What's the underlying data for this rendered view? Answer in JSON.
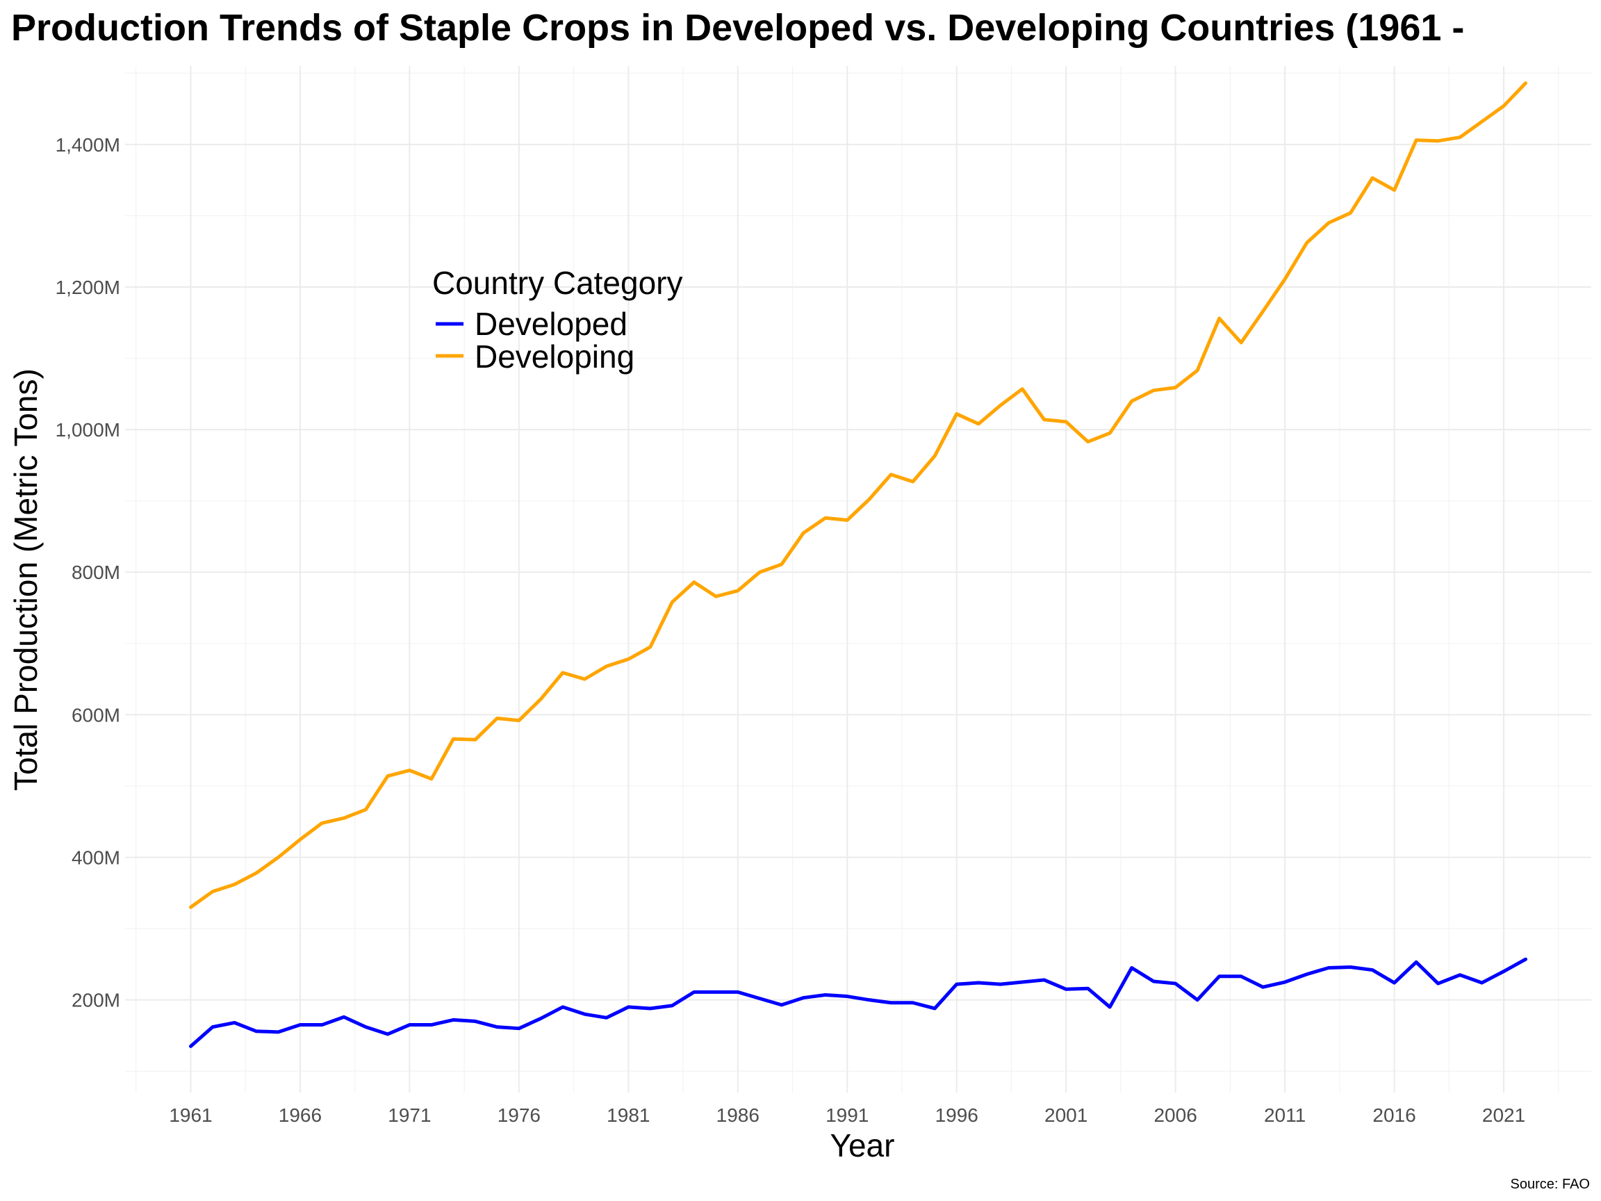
{
  "chart_data": {
    "type": "line",
    "title": "Production Trends of Staple Crops in Developed vs. Developing Countries (1961 -",
    "xlabel": "Year",
    "ylabel": "Total Production (Metric Tons)",
    "caption": "Source: FAO",
    "xlim": [
      1958,
      2025
    ],
    "ylim": [
      70,
      1510
    ],
    "grid": true,
    "legend": {
      "title": "Country Category",
      "placement": "upper-left inside plot"
    },
    "x_ticks": [
      1961,
      1966,
      1971,
      1976,
      1981,
      1986,
      1991,
      1996,
      2001,
      2006,
      2011,
      2016,
      2021
    ],
    "x_tick_labels": [
      "1961",
      "1966",
      "1971",
      "1976",
      "1981",
      "1986",
      "1991",
      "1996",
      "2001",
      "2006",
      "2011",
      "2016",
      "2021"
    ],
    "y_ticks": [
      200,
      400,
      600,
      800,
      1000,
      1200,
      1400
    ],
    "y_tick_labels": [
      "200M",
      "400M",
      "600M",
      "800M",
      "1,000M",
      "1,200M",
      "1,400M"
    ],
    "x": [
      1961,
      1962,
      1963,
      1964,
      1965,
      1966,
      1967,
      1968,
      1969,
      1970,
      1971,
      1972,
      1973,
      1974,
      1975,
      1976,
      1977,
      1978,
      1979,
      1980,
      1981,
      1982,
      1983,
      1984,
      1985,
      1986,
      1987,
      1988,
      1989,
      1990,
      1991,
      1992,
      1993,
      1994,
      1995,
      1996,
      1997,
      1998,
      1999,
      2000,
      2001,
      2002,
      2003,
      2004,
      2005,
      2006,
      2007,
      2008,
      2009,
      2010,
      2011,
      2012,
      2013,
      2014,
      2015,
      2016,
      2017,
      2018,
      2019,
      2020,
      2021,
      2022
    ],
    "series": [
      {
        "name": "Developed",
        "color": "#0000ff",
        "values": [
          135,
          162,
          168,
          156,
          155,
          165,
          165,
          176,
          162,
          152,
          165,
          165,
          172,
          170,
          162,
          160,
          174,
          190,
          180,
          175,
          190,
          188,
          192,
          211,
          211,
          211,
          202,
          193,
          203,
          207,
          205,
          200,
          196,
          196,
          188,
          222,
          224,
          222,
          225,
          228,
          215,
          216,
          190,
          245,
          226,
          223,
          200,
          233,
          233,
          218,
          225,
          236,
          245,
          246,
          242,
          224,
          253,
          223,
          235,
          224,
          240,
          257
        ]
      },
      {
        "name": "Developing",
        "color": "#ffa500",
        "values": [
          330,
          352,
          362,
          378,
          400,
          425,
          448,
          455,
          467,
          514,
          522,
          510,
          566,
          565,
          595,
          592,
          622,
          659,
          650,
          668,
          678,
          695,
          758,
          786,
          766,
          774,
          800,
          811,
          855,
          876,
          873,
          902,
          937,
          927,
          963,
          1022,
          1008,
          1034,
          1057,
          1014,
          1011,
          983,
          995,
          1040,
          1055,
          1059,
          1083,
          1156,
          1122,
          1166,
          1211,
          1262,
          1290,
          1304,
          1353,
          1336,
          1406,
          1405,
          1410,
          1432,
          1454,
          1486
        ]
      }
    ]
  }
}
